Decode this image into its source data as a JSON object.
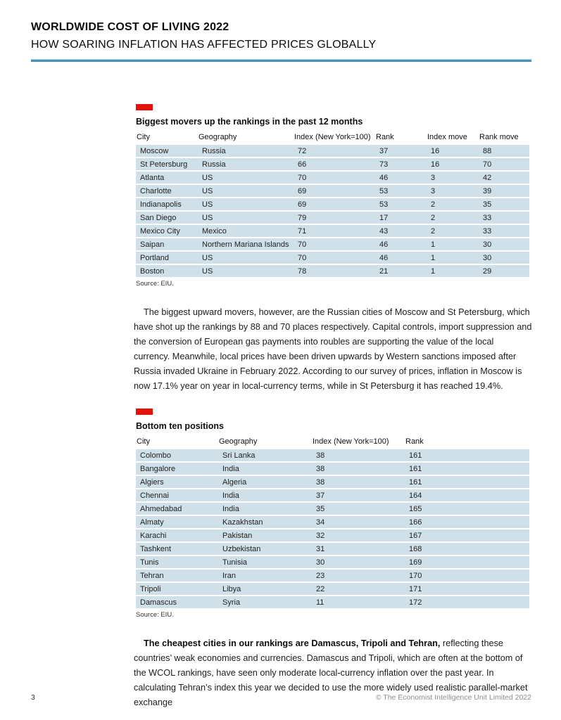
{
  "header": {
    "title": "WORLDWIDE COST OF LIVING 2022",
    "subtitle": "HOW SOARING INFLATION HAS AFFECTED PRICES GLOBALLY"
  },
  "colors": {
    "accent_red": "#e3120b",
    "rule_teal": "#4a93b2",
    "table_row_blue": "#cfe0e8"
  },
  "table1": {
    "title": "Biggest movers up the rankings in the past 12 months",
    "columns": [
      "City",
      "Geography",
      "Index (New York=100)",
      "Rank",
      "Index move",
      "Rank move"
    ],
    "rows": [
      [
        "Moscow",
        "Russia",
        "72",
        "37",
        "16",
        "88"
      ],
      [
        "St Petersburg",
        "Russia",
        "66",
        "73",
        "16",
        "70"
      ],
      [
        "Atlanta",
        "US",
        "70",
        "46",
        "3",
        "42"
      ],
      [
        "Charlotte",
        "US",
        "69",
        "53",
        "3",
        "39"
      ],
      [
        "Indianapolis",
        "US",
        "69",
        "53",
        "2",
        "35"
      ],
      [
        "San Diego",
        "US",
        "79",
        "17",
        "2",
        "33"
      ],
      [
        "Mexico City",
        "Mexico",
        "71",
        "43",
        "2",
        "33"
      ],
      [
        "Saipan",
        "Northern Mariana Islands",
        "70",
        "46",
        "1",
        "30"
      ],
      [
        "Portland",
        "US",
        "70",
        "46",
        "1",
        "30"
      ],
      [
        "Boston",
        "US",
        "78",
        "21",
        "1",
        "29"
      ]
    ],
    "source": "Source: EIU."
  },
  "paragraph1": "The biggest upward movers, however, are the Russian cities of Moscow and St Petersburg, which have shot up the rankings by 88 and 70 places respectively. Capital controls, import suppression and the conversion of European gas payments into roubles are supporting the value of the local currency. Meanwhile, local prices have been driven upwards by Western sanctions imposed after Russia invaded Ukraine in February 2022. According to our survey of prices, inflation in Moscow is now 17.1% year on year in local-currency terms, while in St Petersburg it has reached 19.4%.",
  "table2": {
    "title": "Bottom ten positions",
    "columns": [
      "City",
      "Geography",
      "Index (New York=100)",
      "Rank"
    ],
    "rows": [
      [
        "Colombo",
        "Sri Lanka",
        "38",
        "161"
      ],
      [
        "Bangalore",
        "India",
        "38",
        "161"
      ],
      [
        "Algiers",
        "Algeria",
        "38",
        "161"
      ],
      [
        "Chennai",
        "India",
        "37",
        "164"
      ],
      [
        "Ahmedabad",
        "India",
        "35",
        "165"
      ],
      [
        "Almaty",
        "Kazakhstan",
        "34",
        "166"
      ],
      [
        "Karachi",
        "Pakistan",
        "32",
        "167"
      ],
      [
        "Tashkent",
        "Uzbekistan",
        "31",
        "168"
      ],
      [
        "Tunis",
        "Tunisia",
        "30",
        "169"
      ],
      [
        "Tehran",
        "Iran",
        "23",
        "170"
      ],
      [
        "Tripoli",
        "Libya",
        "22",
        "171"
      ],
      [
        "Damascus",
        "Syria",
        "11",
        "172"
      ]
    ],
    "source": "Source: EIU."
  },
  "paragraph2": {
    "bold": "The cheapest cities in our rankings are Damascus, Tripoli and Tehran,",
    "rest": " reflecting these countries’ weak economies and currencies. Damascus and Tripoli, which are often at the bottom of the WCOL rankings, have seen only moderate local-currency inflation over the past year. In calculating Tehran’s index this year we decided to use the more widely used realistic parallel-market exchange"
  },
  "footer": {
    "page_number": "3",
    "copyright": "© The Economist Intelligence Unit Limited 2022"
  }
}
